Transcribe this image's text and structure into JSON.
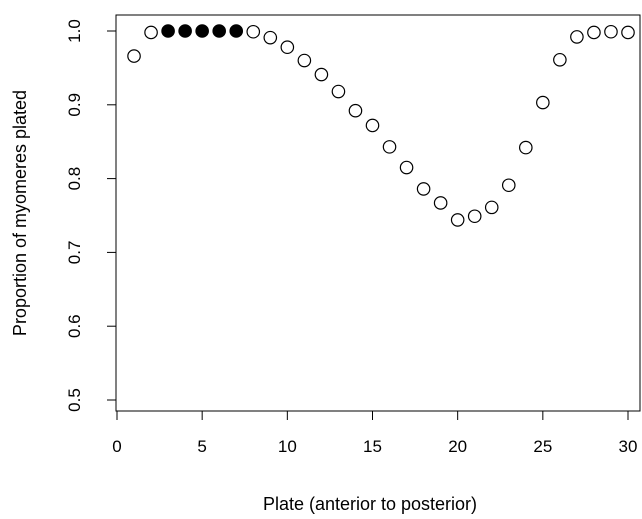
{
  "chart_data": {
    "type": "scatter",
    "xlabel": "Plate (anterior to posterior)",
    "ylabel": "Proportion of myomeres plated",
    "xlim": [
      0,
      31
    ],
    "ylim": [
      0.48,
      1.02
    ],
    "x_ticks": [
      0,
      5,
      10,
      15,
      20,
      25,
      30
    ],
    "y_ticks": [
      0.5,
      0.6,
      0.7,
      0.8,
      0.9,
      1.0
    ],
    "x_tick_labels": [
      "0",
      "5",
      "10",
      "15",
      "20",
      "25",
      "30"
    ],
    "y_tick_labels": [
      "0.5",
      "0.6",
      "0.7",
      "0.8",
      "0.9",
      "1.0"
    ],
    "grid": false,
    "series": [
      {
        "marker": "open-circle",
        "color": "#000000",
        "points": [
          {
            "x": 1,
            "y": 0.966
          },
          {
            "x": 2,
            "y": 0.998
          },
          {
            "x": 8,
            "y": 0.999
          },
          {
            "x": 9,
            "y": 0.991
          },
          {
            "x": 10,
            "y": 0.978
          },
          {
            "x": 11,
            "y": 0.96
          },
          {
            "x": 12,
            "y": 0.941
          },
          {
            "x": 13,
            "y": 0.918
          },
          {
            "x": 14,
            "y": 0.892
          },
          {
            "x": 15,
            "y": 0.872
          },
          {
            "x": 16,
            "y": 0.843
          },
          {
            "x": 17,
            "y": 0.815
          },
          {
            "x": 18,
            "y": 0.786
          },
          {
            "x": 19,
            "y": 0.767
          },
          {
            "x": 20,
            "y": 0.744
          },
          {
            "x": 21,
            "y": 0.749
          },
          {
            "x": 22,
            "y": 0.761
          },
          {
            "x": 23,
            "y": 0.791
          },
          {
            "x": 24,
            "y": 0.842
          },
          {
            "x": 25,
            "y": 0.903
          },
          {
            "x": 26,
            "y": 0.961
          },
          {
            "x": 27,
            "y": 0.992
          },
          {
            "x": 28,
            "y": 0.998
          },
          {
            "x": 29,
            "y": 0.999
          },
          {
            "x": 30,
            "y": 0.998
          }
        ]
      },
      {
        "marker": "filled-circle",
        "color": "#000000",
        "points": [
          {
            "x": 3,
            "y": 1.0
          },
          {
            "x": 4,
            "y": 1.0
          },
          {
            "x": 5,
            "y": 1.0
          },
          {
            "x": 6,
            "y": 1.0
          },
          {
            "x": 7,
            "y": 1.0
          }
        ]
      }
    ]
  }
}
